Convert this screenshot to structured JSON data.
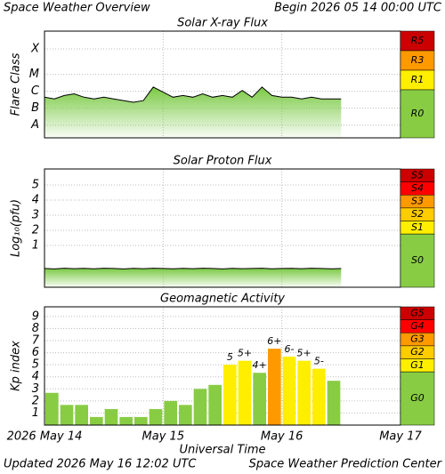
{
  "title": "Space Weather Overview",
  "subtitle": "Begin 2026 05 14 00:00 UTC",
  "footer": {
    "updated": "Updated 2026 May 16 12:02 UTC",
    "source": "Space Weather Prediction Center"
  },
  "chart_data": [
    {
      "type": "area",
      "title": "Solar X-ray Flux",
      "y_label": "Flare Class",
      "color": "#7ac943",
      "line_color": "#000000",
      "xlim": [
        0,
        72
      ],
      "ylim": [
        -9,
        -2.7
      ],
      "yticks": [
        {
          "value": -8.25,
          "label": "A"
        },
        {
          "value": -7.25,
          "label": "B"
        },
        {
          "value": -6.25,
          "label": "C"
        },
        {
          "value": -5.25,
          "label": "M"
        },
        {
          "value": -3.75,
          "label": "X"
        }
      ],
      "grid": true,
      "x": [
        0,
        2,
        4,
        6,
        8,
        10,
        12,
        14,
        16,
        18,
        20,
        22,
        24,
        26,
        28,
        30,
        32,
        34,
        36,
        38,
        40,
        42,
        44,
        46,
        48,
        50,
        52,
        54,
        56,
        58,
        60
      ],
      "values": [
        -6.6,
        -6.7,
        -6.5,
        -6.4,
        -6.6,
        -6.7,
        -6.6,
        -6.7,
        -6.8,
        -6.9,
        -6.8,
        -6.0,
        -6.3,
        -6.6,
        -6.5,
        -6.6,
        -6.4,
        -6.6,
        -6.5,
        -6.6,
        -6.2,
        -6.6,
        -6.0,
        -6.5,
        -6.6,
        -6.6,
        -6.7,
        -6.6,
        -6.7,
        -6.7,
        -6.7
      ],
      "scale": [
        {
          "label": "R5",
          "color": "#cc0000"
        },
        {
          "label": "R3",
          "color": "#ff9900"
        },
        {
          "label": "R1",
          "color": "#ffee00"
        },
        {
          "label": "R0",
          "color": "#88cc44"
        }
      ]
    },
    {
      "type": "area",
      "title": "Solar Proton Flux",
      "y_label": "Log₁₀(pfu)",
      "color": "#7ac943",
      "line_color": "#000000",
      "xlim": [
        0,
        72
      ],
      "ylim": [
        -1.76,
        6.06
      ],
      "yticks": [
        1,
        2,
        3,
        4,
        5
      ],
      "grid": true,
      "x": [
        0,
        2,
        4,
        6,
        8,
        10,
        12,
        14,
        16,
        18,
        20,
        22,
        24,
        26,
        28,
        30,
        32,
        34,
        36,
        38,
        40,
        42,
        44,
        46,
        48,
        50,
        52,
        54,
        56,
        58,
        60
      ],
      "values": [
        -0.52,
        -0.55,
        -0.5,
        -0.53,
        -0.51,
        -0.54,
        -0.5,
        -0.52,
        -0.55,
        -0.51,
        -0.53,
        -0.5,
        -0.52,
        -0.54,
        -0.51,
        -0.53,
        -0.5,
        -0.52,
        -0.55,
        -0.51,
        -0.53,
        -0.52,
        -0.5,
        -0.54,
        -0.52,
        -0.51,
        -0.53,
        -0.5,
        -0.52,
        -0.54,
        -0.52
      ],
      "scale": [
        {
          "label": "S5",
          "color": "#cc0000"
        },
        {
          "label": "S4",
          "color": "#ff0000"
        },
        {
          "label": "S3",
          "color": "#ff9900"
        },
        {
          "label": "S2",
          "color": "#ffcc00"
        },
        {
          "label": "S1",
          "color": "#ffee00"
        },
        {
          "label": "S0",
          "color": "#88cc44"
        }
      ]
    },
    {
      "type": "bar",
      "title": "Geomagnetic Activity",
      "y_label": "Kp index",
      "x_label": "Universal Time",
      "xlim": [
        0,
        72
      ],
      "ylim": [
        0,
        9.8
      ],
      "yticks": [
        1,
        2,
        3,
        4,
        5,
        6,
        7,
        8,
        9
      ],
      "grid": true,
      "xticks": [
        {
          "value": 0,
          "label": "2026 May 14"
        },
        {
          "value": 24,
          "label": "May 15"
        },
        {
          "value": 48,
          "label": "May 16"
        },
        {
          "value": 72,
          "label": "May 17"
        }
      ],
      "x": [
        0,
        3,
        6,
        9,
        12,
        15,
        18,
        21,
        24,
        27,
        30,
        33,
        36,
        39,
        42,
        45,
        48,
        51,
        54,
        57
      ],
      "bin_width": 3,
      "values": [
        2.67,
        1.67,
        1.67,
        0.67,
        1.33,
        0.67,
        0.67,
        1.33,
        2,
        1.67,
        3,
        3.33,
        5,
        5.33,
        4.33,
        6.33,
        5.67,
        5.33,
        4.67,
        3.67
      ],
      "value_labels": [
        null,
        null,
        null,
        null,
        null,
        null,
        null,
        null,
        null,
        null,
        null,
        null,
        "5",
        "5+",
        "4+",
        "6+",
        "6-",
        "5+",
        "5-",
        null
      ],
      "colors": [
        "#88cc44",
        "#88cc44",
        "#88cc44",
        "#88cc44",
        "#88cc44",
        "#88cc44",
        "#88cc44",
        "#88cc44",
        "#88cc44",
        "#88cc44",
        "#88cc44",
        "#88cc44",
        "#ffee00",
        "#ffee00",
        "#88cc44",
        "#ff9900",
        "#ffee00",
        "#ffee00",
        "#ffee00",
        "#88cc44"
      ],
      "scale": [
        {
          "label": "G5",
          "color": "#cc0000"
        },
        {
          "label": "G4",
          "color": "#ff0000"
        },
        {
          "label": "G3",
          "color": "#ff9900"
        },
        {
          "label": "G2",
          "color": "#ffcc00"
        },
        {
          "label": "G1",
          "color": "#ffee00"
        },
        {
          "label": "G0",
          "color": "#88cc44"
        }
      ]
    }
  ]
}
